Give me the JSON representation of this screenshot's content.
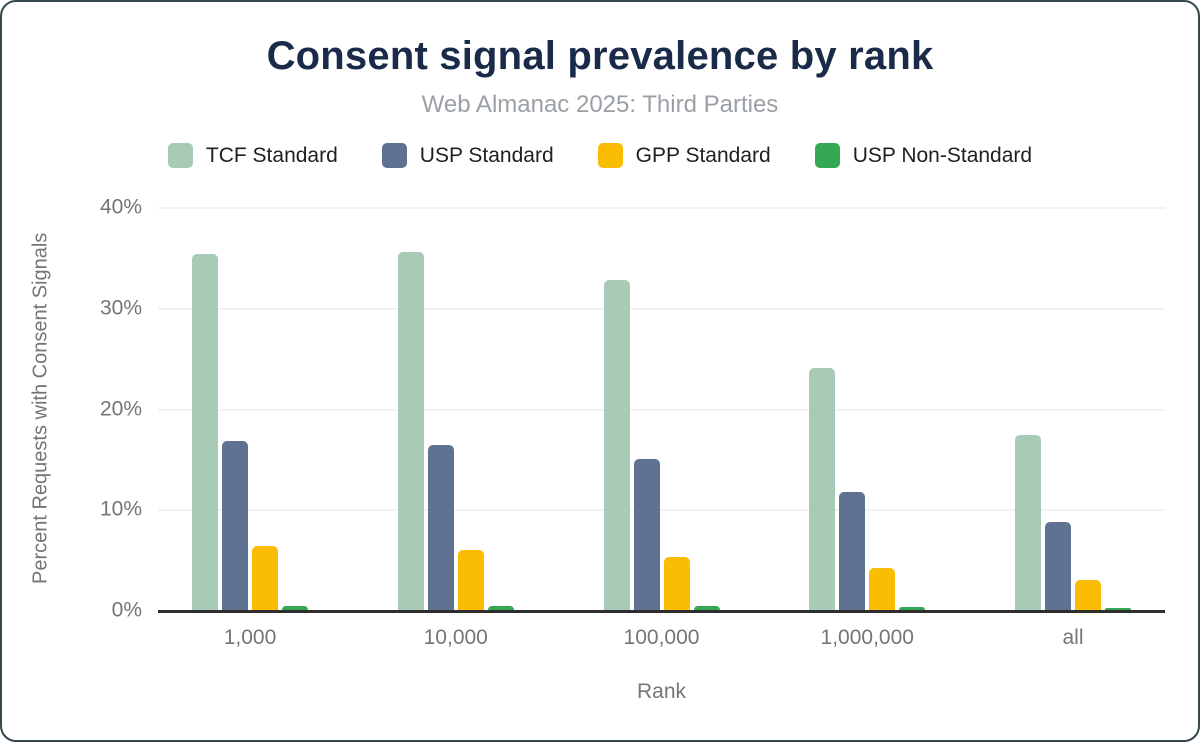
{
  "chart_data": {
    "type": "bar",
    "title": "Consent signal prevalence by rank",
    "subtitle": "Web Almanac 2025: Third Parties",
    "xlabel": "Rank",
    "ylabel": "Percent Requests with Consent Signals",
    "categories": [
      "1,000",
      "10,000",
      "100,000",
      "1,000,000",
      "all"
    ],
    "series": [
      {
        "name": "TCF Standard",
        "color": "#A8CBB7",
        "values": [
          35.3,
          35.5,
          32.8,
          24.0,
          17.4
        ]
      },
      {
        "name": "USP Standard",
        "color": "#5F7292",
        "values": [
          16.8,
          16.4,
          15.0,
          11.7,
          8.7
        ]
      },
      {
        "name": "GPP Standard",
        "color": "#FBBC04",
        "values": [
          6.4,
          6.0,
          5.3,
          4.2,
          3.0
        ]
      },
      {
        "name": "USP Non-Standard",
        "color": "#34A853",
        "values": [
          0.4,
          0.4,
          0.4,
          0.3,
          0.2
        ]
      }
    ],
    "ylim": [
      0,
      40
    ],
    "yticks": [
      "0%",
      "10%",
      "20%",
      "30%",
      "40%"
    ],
    "grid": true,
    "legend_position": "top",
    "colors": {
      "title": "#1A2B49",
      "subtitle": "#9AA0A6",
      "axis_text": "#757575",
      "axis_line": "#2e2e2e",
      "gridline": "#f2f2f2"
    }
  }
}
